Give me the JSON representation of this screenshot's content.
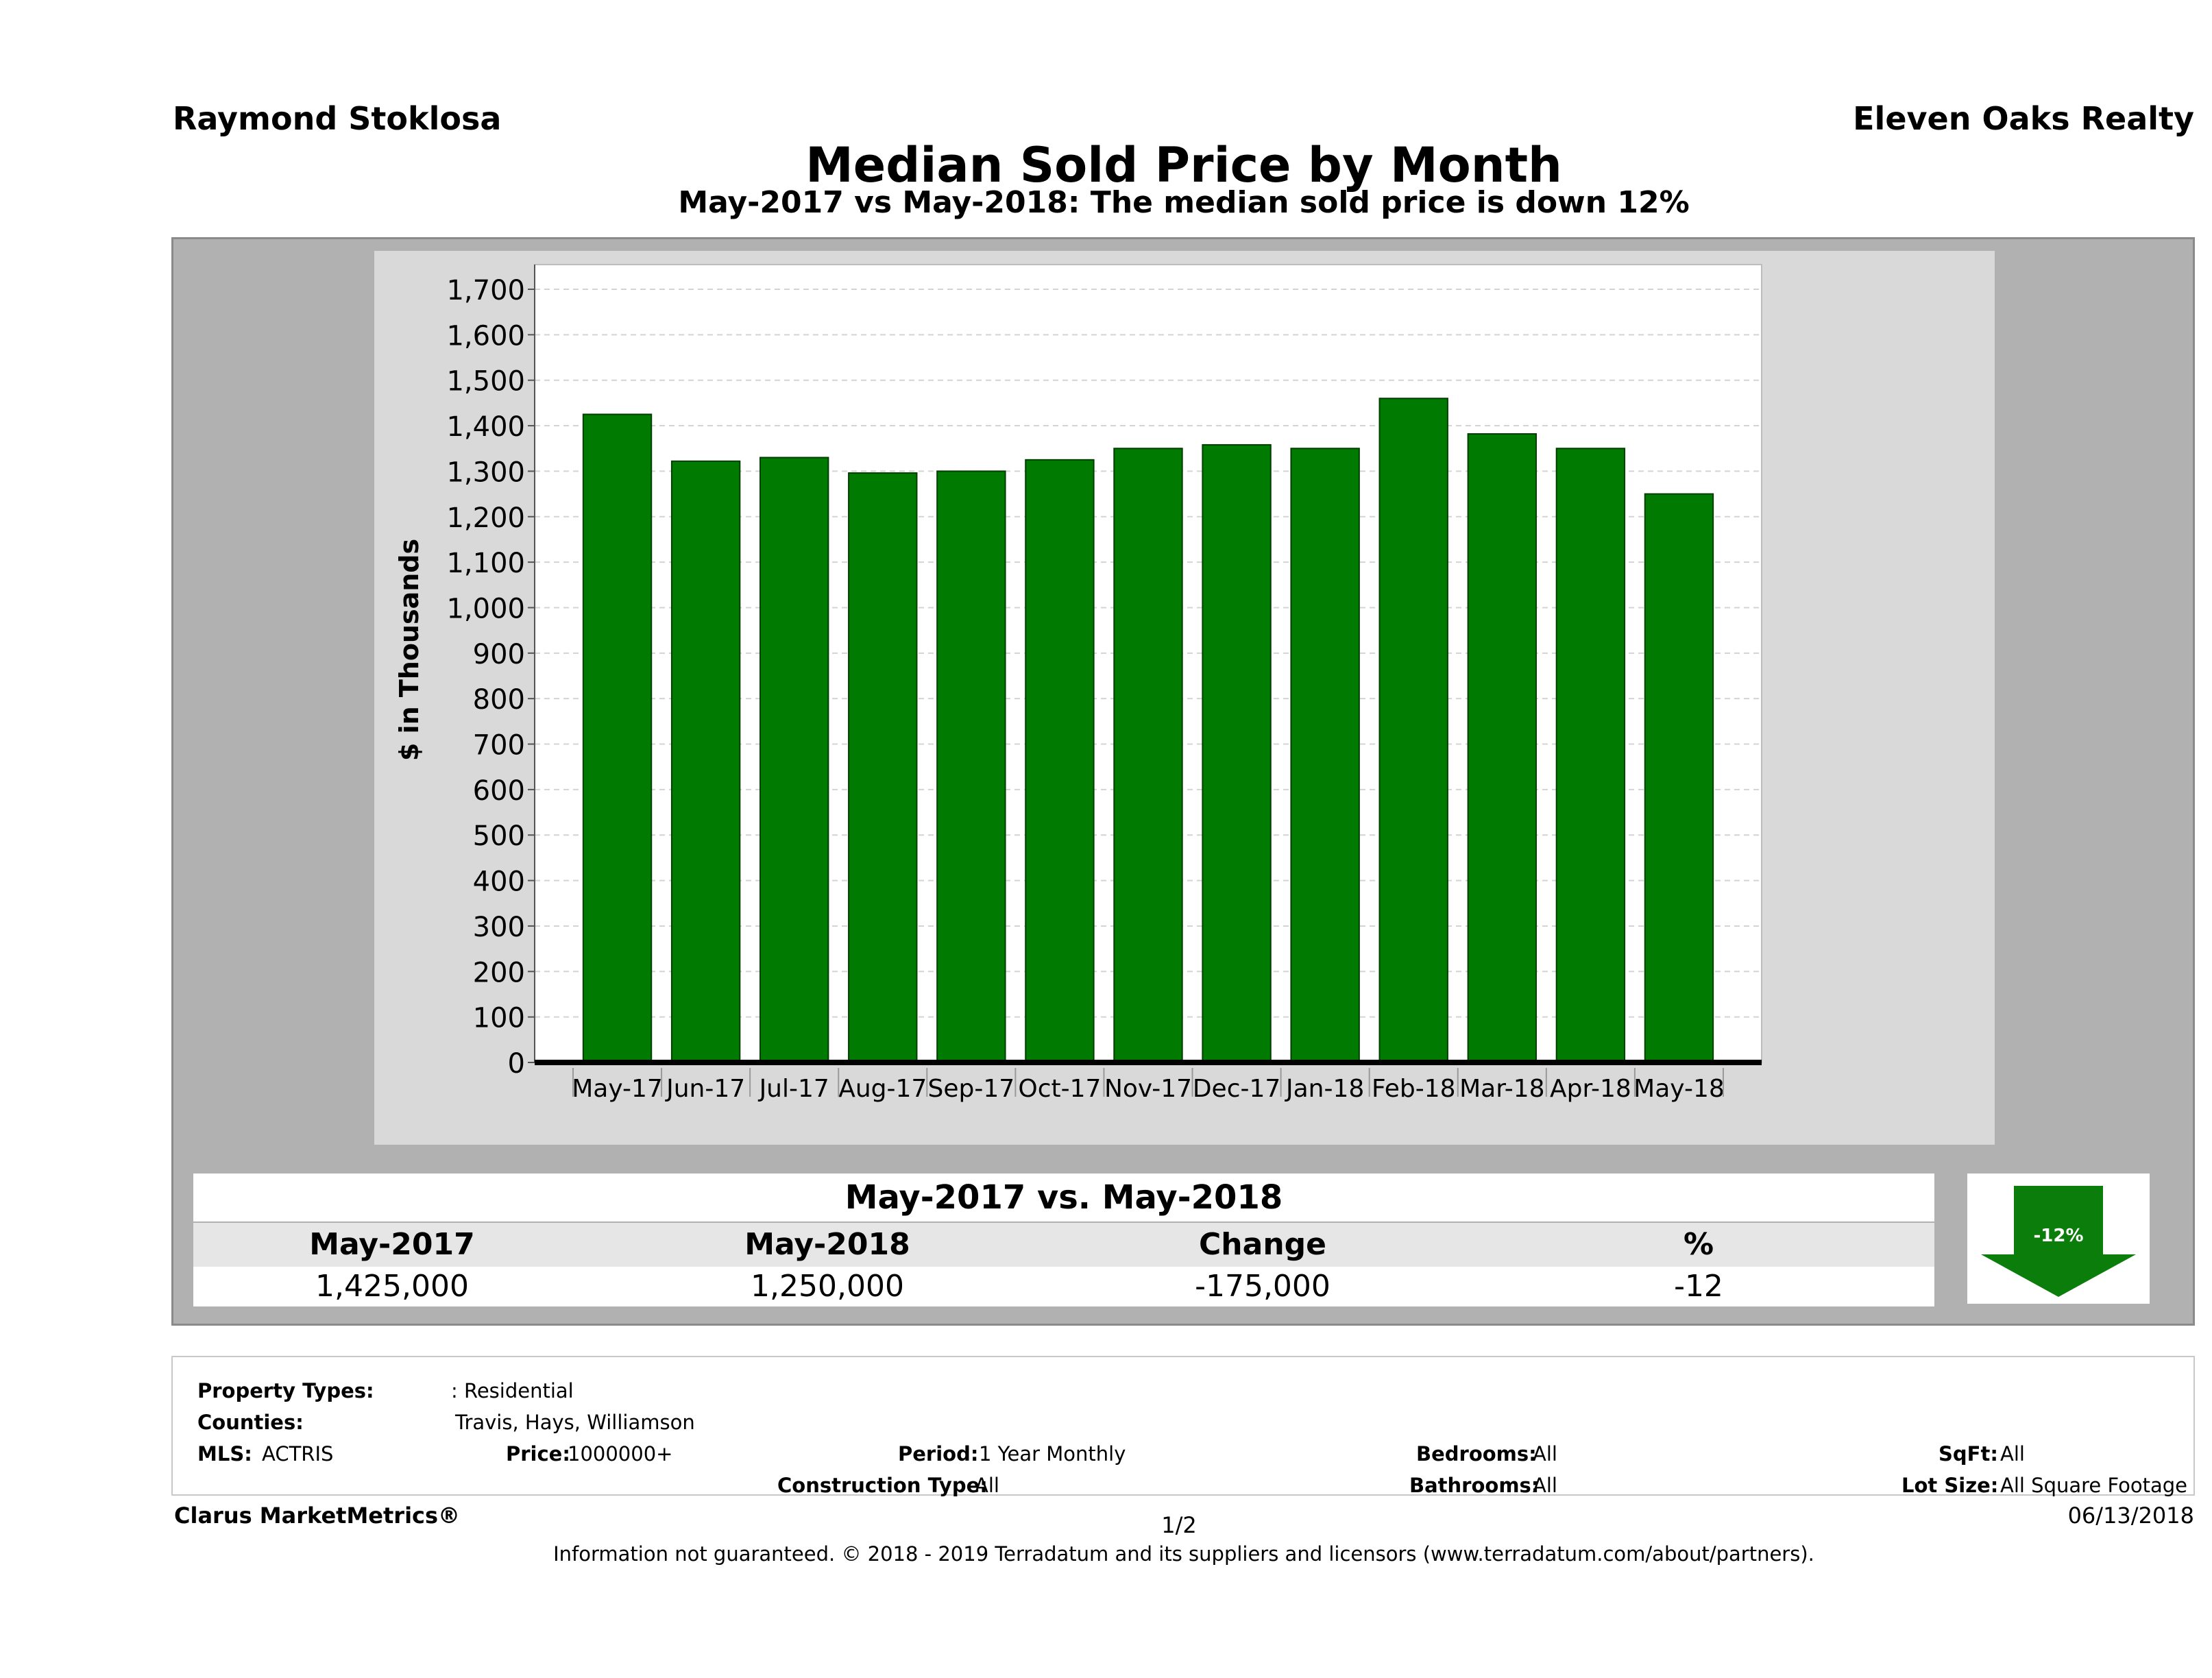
{
  "header": {
    "agent_name": "Raymond Stoklosa",
    "brokerage": "Eleven Oaks Realty",
    "title": "Median Sold Price by Month",
    "subtitle": "May-2017 vs May-2018: The median sold price is down 12%"
  },
  "chart_data": {
    "type": "bar",
    "categories": [
      "May-17",
      "Jun-17",
      "Jul-17",
      "Aug-17",
      "Sep-17",
      "Oct-17",
      "Nov-17",
      "Dec-17",
      "Jan-18",
      "Feb-18",
      "Mar-18",
      "Apr-18",
      "May-18"
    ],
    "values": [
      1425,
      1322,
      1330,
      1296,
      1300,
      1325,
      1350,
      1358,
      1350,
      1460,
      1382,
      1350,
      1250
    ],
    "ylabel": "$ in Thousands",
    "ylim": [
      0,
      1700
    ],
    "yticks": [
      "0",
      "100",
      "200",
      "300",
      "400",
      "500",
      "600",
      "700",
      "800",
      "900",
      "1,000",
      "1,100",
      "1,200",
      "1,300",
      "1,400",
      "1,500",
      "1,600",
      "1,700"
    ],
    "ytick_values": [
      0,
      100,
      200,
      300,
      400,
      500,
      600,
      700,
      800,
      900,
      1000,
      1100,
      1200,
      1300,
      1400,
      1500,
      1600,
      1700
    ],
    "bar_color": "#007a00",
    "grid": true
  },
  "summary": {
    "title": "May-2017 vs. May-2018",
    "headers": [
      "May-2017",
      "May-2018",
      "Change",
      "%"
    ],
    "values": [
      "1,425,000",
      "1,250,000",
      "-175,000",
      "-12"
    ],
    "arrow_label": "-12%",
    "arrow_color": "#0a7d0a"
  },
  "criteria": {
    "property_types_label": "Property Types:",
    "property_types_value": ": Residential",
    "counties_label": "Counties:",
    "counties_value": "Travis, Hays, Williamson",
    "mls_label": "MLS:",
    "mls_value": "ACTRIS",
    "price_label": "Price:",
    "price_value": "1000000+",
    "period_label": "Period:",
    "period_value": "1 Year Monthly",
    "construction_label": "Construction Type:",
    "construction_value": "All",
    "bedrooms_label": "Bedrooms:",
    "bedrooms_value": "All",
    "bathrooms_label": "Bathrooms:",
    "bathrooms_value": "All",
    "sqft_label": "SqFt:",
    "sqft_value": "All",
    "lotsize_label": "Lot Size:",
    "lotsize_value": "All Square Footage"
  },
  "footer": {
    "brand": "Clarus MarketMetrics®",
    "page": "1/2",
    "date": "06/13/2018",
    "disclaimer": "Information not guaranteed. © 2018 - 2019 Terradatum and its suppliers and licensors (www.terradatum.com/about/partners)."
  }
}
